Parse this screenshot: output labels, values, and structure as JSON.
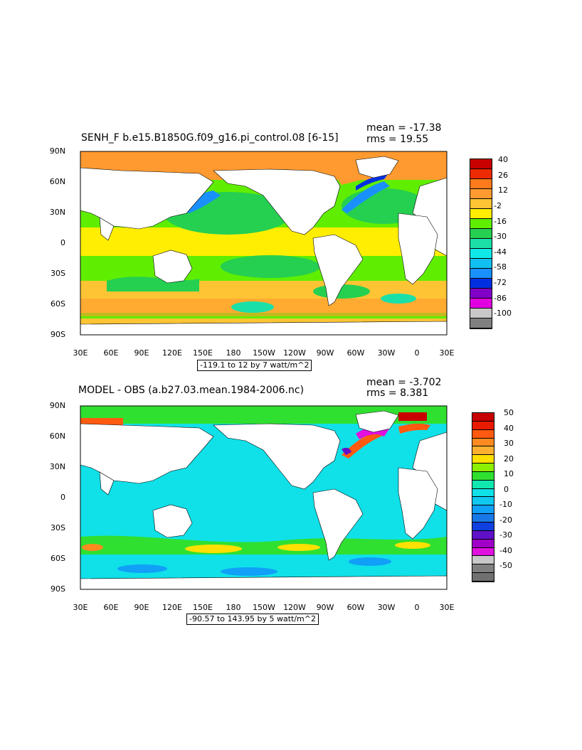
{
  "top": {
    "title": "SENH_F b.e15.B1850G.f09_g16.pi_control.08 [6-15]",
    "mean": "mean = -17.38",
    "rms": "rms = 19.55",
    "range": "-119.1 to 12 by 7 watt/m^2",
    "colorbar": {
      "labels": [
        "40",
        "26",
        "12",
        "-2",
        "-16",
        "-30",
        "-44",
        "-58",
        "-72",
        "-86",
        "-100"
      ],
      "colors": [
        "#c80000",
        "#ee2a00",
        "#ff7a1a",
        "#ff9a30",
        "#ffc434",
        "#ffee00",
        "#60ee00",
        "#25d050",
        "#1ae0a8",
        "#10e8e8",
        "#10c0f0",
        "#1a90ff",
        "#0030e0",
        "#8000c8",
        "#e000e0",
        "#c8c8c8",
        "#808080"
      ]
    }
  },
  "bottom": {
    "title": "MODEL - OBS (a.b27.03.mean.1984-2006.nc)",
    "mean": "mean = -3.702",
    "rms": "rms = 8.381",
    "range": "-90.57 to 143.95 by 5 watt/m^2",
    "colorbar": {
      "labels": [
        "50",
        "40",
        "30",
        "20",
        "10",
        "0",
        "-10",
        "-20",
        "-30",
        "-40",
        "-50"
      ],
      "colors": [
        "#c80000",
        "#e81a00",
        "#ff5a10",
        "#ff8a20",
        "#ffb030",
        "#ffe000",
        "#8cf000",
        "#30e030",
        "#10e8b0",
        "#10e0e8",
        "#10c8f0",
        "#10a0f8",
        "#1878e8",
        "#1040e0",
        "#6010c8",
        "#a000c8",
        "#e010e0",
        "#c8c8c8",
        "#808080",
        "#707070"
      ]
    }
  },
  "axes": {
    "lat_labels": [
      "90N",
      "60N",
      "30N",
      "0",
      "30S",
      "60S",
      "90S"
    ],
    "lon_labels": [
      "30E",
      "60E",
      "90E",
      "120E",
      "150E",
      "180",
      "150W",
      "120W",
      "90W",
      "60W",
      "30W",
      "0",
      "30E"
    ]
  }
}
